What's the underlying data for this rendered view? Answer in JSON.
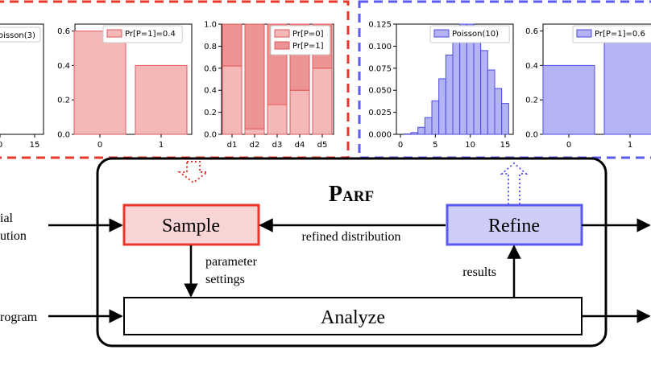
{
  "colors": {
    "red_border": "#e8372b",
    "red_fill": "#f4b8b8",
    "red_fill_dark": "#ec9494",
    "red_stroke": "#e05a5a",
    "blue_border": "#5a5af0",
    "blue_fill": "#b4b4f4",
    "blue_stroke": "#4a4ae0",
    "sample_fill": "#f8d4d4",
    "refine_fill": "#cdcdf8"
  },
  "diagram": {
    "title": "PARF",
    "sample_label": "Sample",
    "refine_label": "Refine",
    "analyze_label": "Analyze",
    "refined_distribution_label": "refined distribution",
    "parameter_settings_line1": "parameter",
    "parameter_settings_line2": "settings",
    "results_label": "results",
    "left_input_top_line1": "ial",
    "left_input_top_line2": "ution",
    "left_input_bottom": "rogram"
  },
  "chart_data": [
    {
      "type": "bar",
      "legend": [
        "oisson(3)"
      ],
      "x_ticks": [
        "0",
        "15"
      ],
      "note": "cropped at left edge"
    },
    {
      "type": "bar",
      "categories": [
        "0",
        "1"
      ],
      "values": [
        0.6,
        0.4
      ],
      "legend": [
        "Pr[P=1]=0.4"
      ],
      "y_ticks": [
        "0.0",
        "0.2",
        "0.4",
        "0.6"
      ],
      "ylim": [
        0,
        0.64
      ]
    },
    {
      "type": "bar",
      "stacked": true,
      "categories": [
        "d1",
        "d2",
        "d3",
        "d4",
        "d5"
      ],
      "series": [
        {
          "name": "Pr[P=0]",
          "values": [
            0.62,
            0.05,
            0.27,
            0.4,
            0.6
          ]
        },
        {
          "name": "Pr[P=1]",
          "values": [
            0.38,
            0.95,
            0.73,
            0.6,
            0.4
          ]
        }
      ],
      "legend": [
        "Pr[P=0]",
        "Pr[P=1]"
      ],
      "y_ticks": [
        "0.0",
        "0.2",
        "0.4",
        "0.6",
        "0.8",
        "1.0"
      ],
      "ylim": [
        0,
        1.0
      ]
    },
    {
      "type": "bar",
      "x": [
        1,
        2,
        3,
        4,
        5,
        6,
        7,
        8,
        9,
        10,
        11,
        12,
        13,
        14,
        15
      ],
      "values": [
        0.0005,
        0.002,
        0.008,
        0.019,
        0.038,
        0.063,
        0.09,
        0.113,
        0.125,
        0.125,
        0.114,
        0.095,
        0.073,
        0.052,
        0.035
      ],
      "legend": [
        "Poisson(10)"
      ],
      "x_ticks": [
        "0",
        "5",
        "10",
        "15"
      ],
      "y_ticks": [
        "0.000",
        "0.025",
        "0.050",
        "0.075",
        "0.100",
        "0.125"
      ],
      "xlim": [
        0,
        16
      ],
      "ylim": [
        0,
        0.125
      ]
    },
    {
      "type": "bar",
      "categories": [
        "0",
        "1"
      ],
      "values": [
        0.4,
        0.6
      ],
      "legend": [
        "Pr[P=1]=0.6"
      ],
      "y_ticks": [
        "0.0",
        "0.2",
        "0.4",
        "0.6"
      ],
      "ylim": [
        0,
        0.64
      ]
    }
  ]
}
